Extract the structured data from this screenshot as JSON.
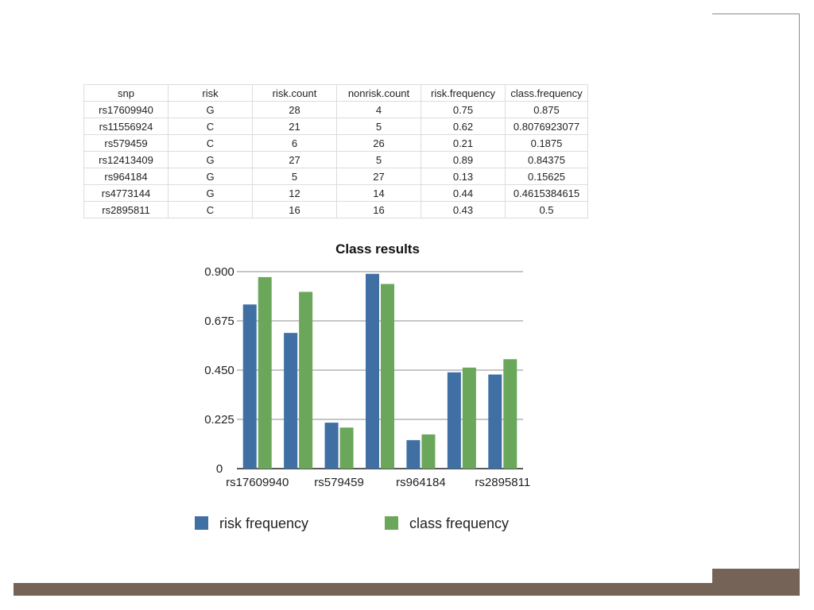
{
  "table": {
    "headers": [
      "snp",
      "risk",
      "risk.count",
      "nonrisk.count",
      "risk.frequency",
      "class.frequency"
    ],
    "rows": [
      [
        "rs17609940",
        "G",
        "28",
        "4",
        "0.75",
        "0.875"
      ],
      [
        "rs11556924",
        "C",
        "21",
        "5",
        "0.62",
        "0.8076923077"
      ],
      [
        "rs579459",
        "C",
        "6",
        "26",
        "0.21",
        "0.1875"
      ],
      [
        "rs12413409",
        "G",
        "27",
        "5",
        "0.89",
        "0.84375"
      ],
      [
        "rs964184",
        "G",
        "5",
        "27",
        "0.13",
        "0.15625"
      ],
      [
        "rs4773144",
        "G",
        "12",
        "14",
        "0.44",
        "0.4615384615"
      ],
      [
        "rs2895811",
        "C",
        "16",
        "16",
        "0.43",
        "0.5"
      ]
    ]
  },
  "chart_data": {
    "type": "bar",
    "title": "Class results",
    "categories": [
      "rs17609940",
      "rs11556924",
      "rs579459",
      "rs12413409",
      "rs964184",
      "rs4773144",
      "rs2895811"
    ],
    "category_labels_shown": [
      "rs17609940",
      "",
      "rs579459",
      "",
      "rs964184",
      "",
      "rs2895811"
    ],
    "series": [
      {
        "name": "risk frequency",
        "color": "#3f6fa3",
        "values": [
          0.75,
          0.62,
          0.21,
          0.89,
          0.13,
          0.44,
          0.43
        ]
      },
      {
        "name": "class frequency",
        "color": "#6aa75a",
        "values": [
          0.875,
          0.8076923077,
          0.1875,
          0.84375,
          0.15625,
          0.4615384615,
          0.5
        ]
      }
    ],
    "yticks": [
      "0",
      "0.225",
      "0.450",
      "0.675",
      "0.900"
    ],
    "ylim": [
      0,
      0.9
    ],
    "grid": true,
    "legend_position": "bottom"
  }
}
